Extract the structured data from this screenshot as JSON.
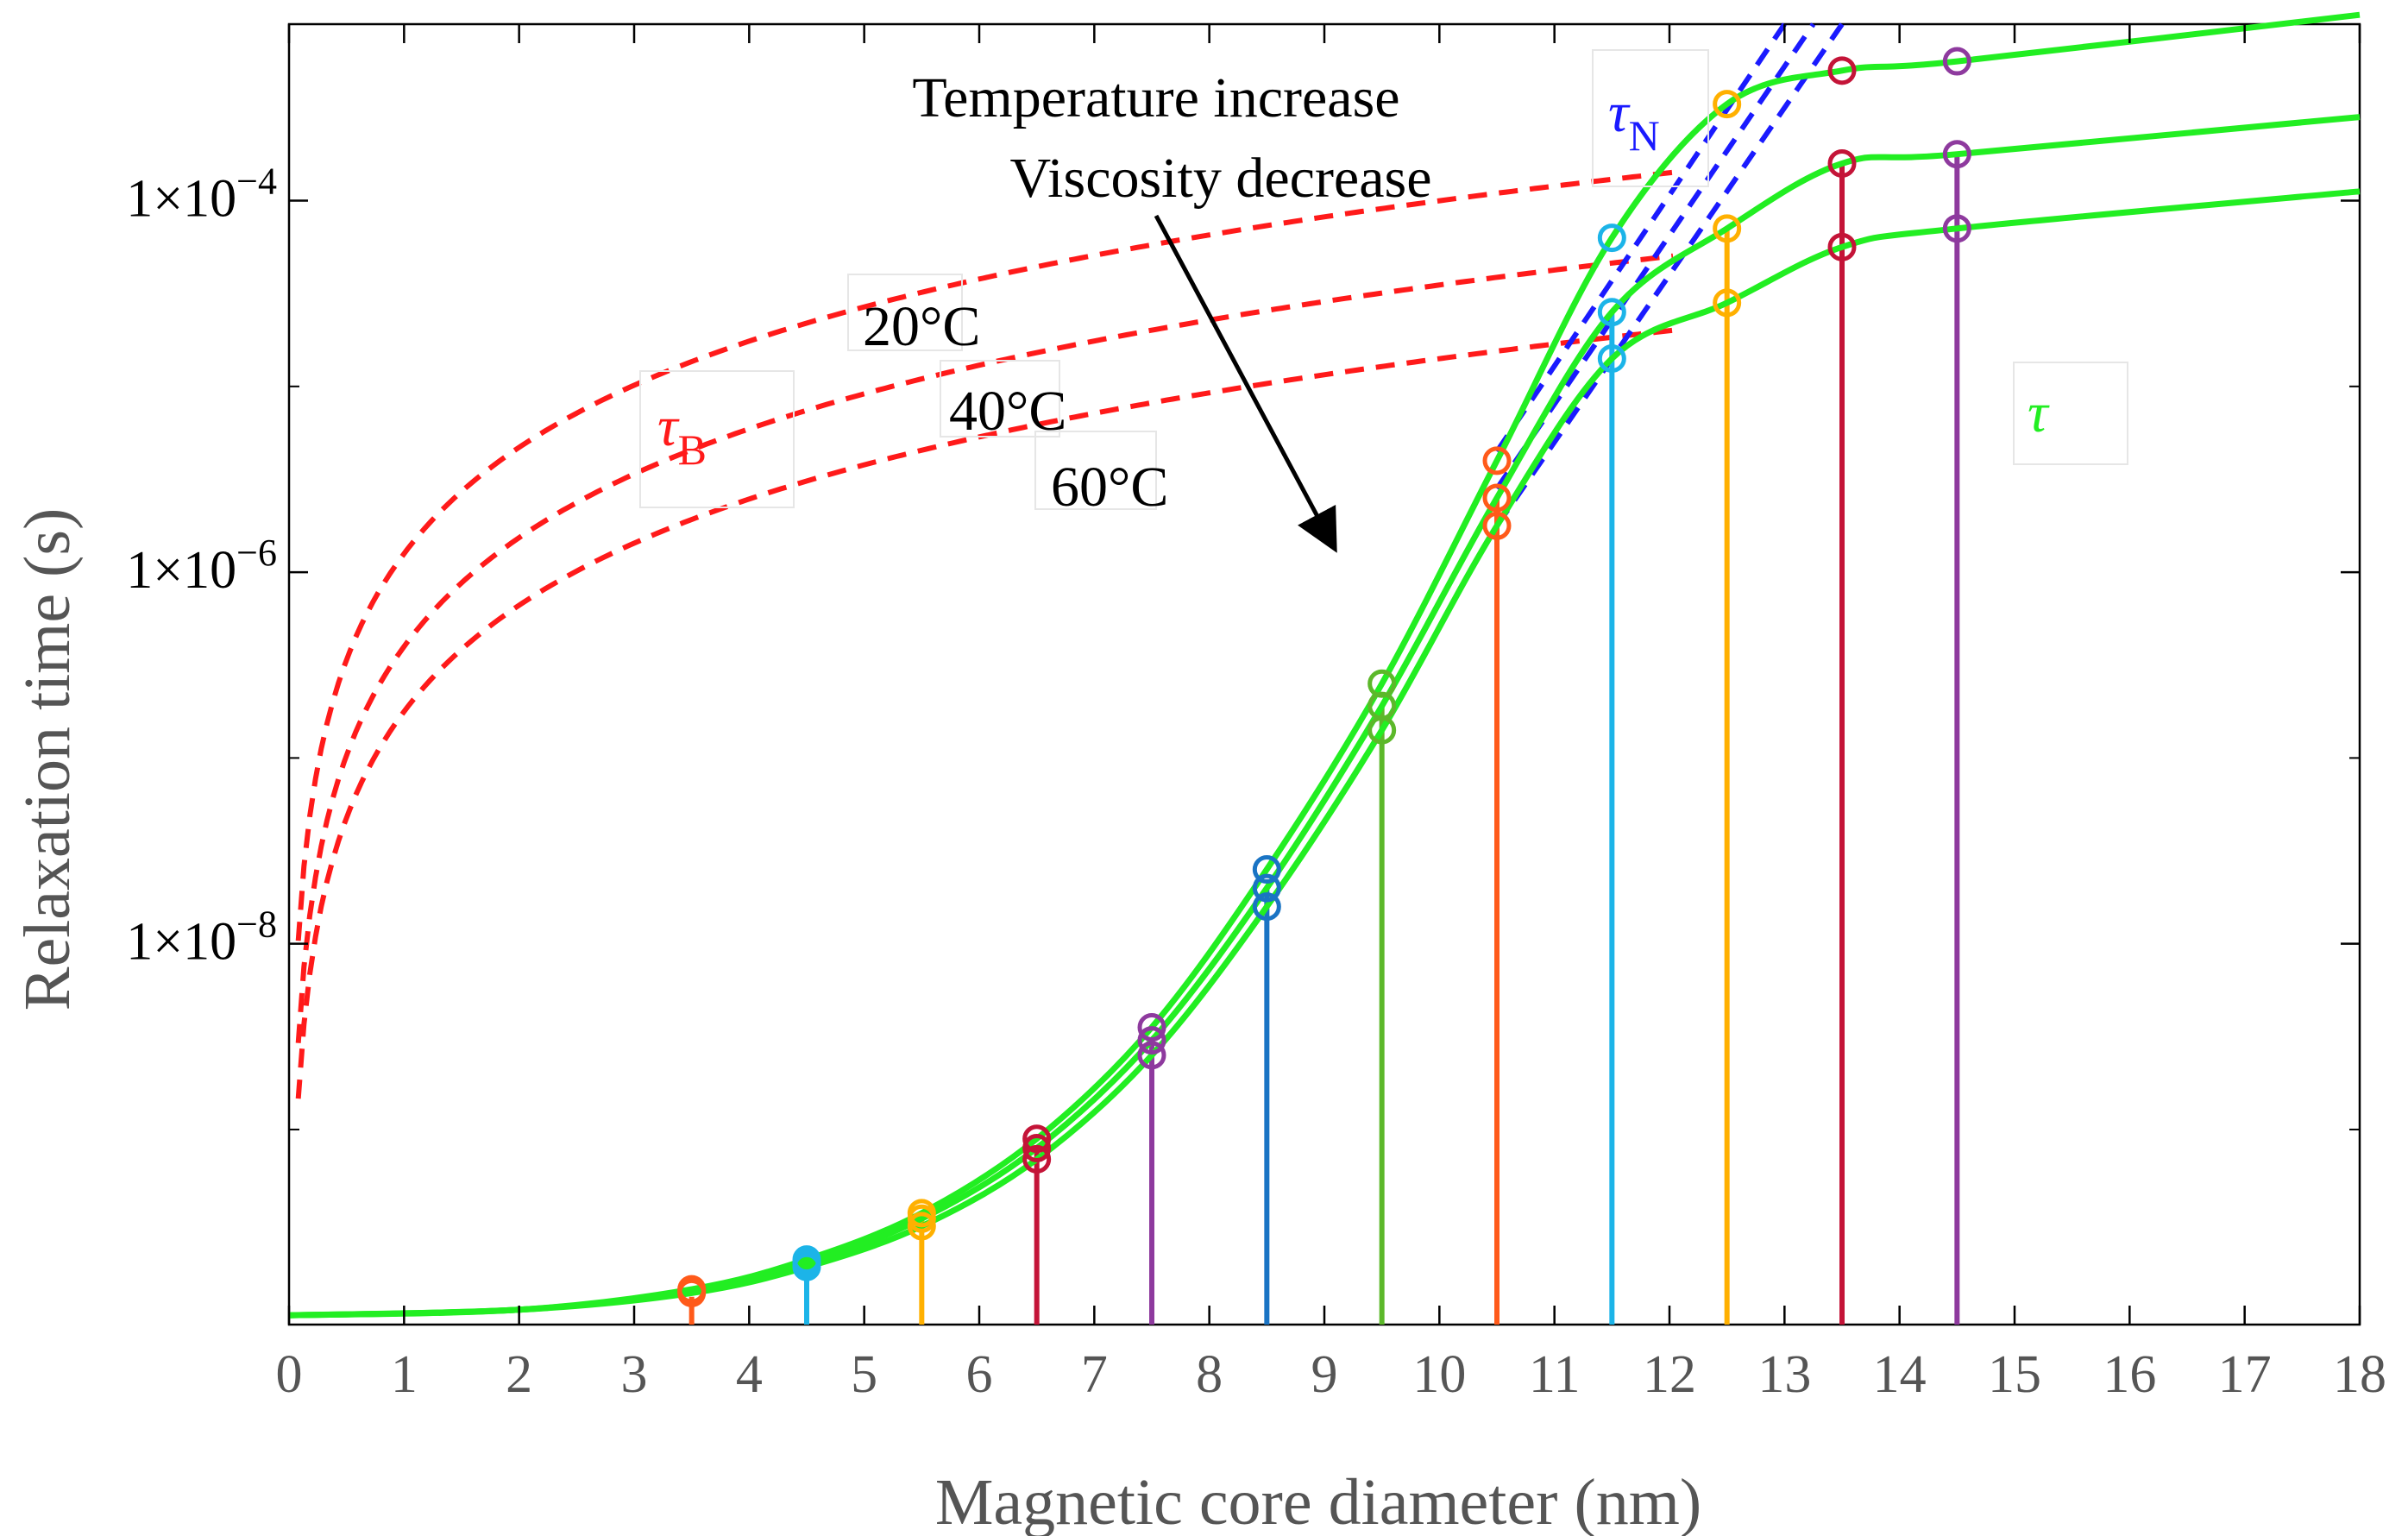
{
  "chart_data": {
    "type": "line",
    "title": "",
    "xlabel": "Magnetic core diameter (nm)",
    "ylabel": "Relaxation time (s)",
    "xlim": [
      0,
      18
    ],
    "ylim_log10": [
      -10.05,
      -3.05
    ],
    "xticks": [
      "0",
      "1",
      "2",
      "3",
      "4",
      "5",
      "6",
      "7",
      "8",
      "9",
      "10",
      "11",
      "12",
      "13",
      "14",
      "15",
      "16",
      "17",
      "18"
    ],
    "yticks": [
      {
        "mantissa": "1×10",
        "exponent": "−4",
        "log10": -4
      },
      {
        "mantissa": "1×10",
        "exponent": "−6",
        "log10": -6
      },
      {
        "mantissa": "1×10",
        "exponent": "−8",
        "log10": -8
      }
    ],
    "temperatures": [
      "20°C",
      "40°C",
      "60°C"
    ],
    "brownian_log10_tau_at_1nm": [
      -5.9,
      -6.4,
      -6.75
    ],
    "brownian_log10_tau_at_12nm": [
      -3.85,
      -4.3,
      -4.7
    ],
    "series": [
      {
        "name": "τ 20°C",
        "x": [
          0,
          2,
          3.5,
          4.5,
          5.5,
          6.5,
          7.5,
          8.5,
          9.5,
          10.5,
          11.5,
          12.5,
          13.5,
          14.5,
          18
        ],
        "log10_y": [
          -10.0,
          -9.97,
          -9.86,
          -9.7,
          -9.45,
          -9.05,
          -8.45,
          -7.6,
          -6.6,
          -5.4,
          -4.2,
          -3.48,
          -3.3,
          -3.25,
          -3.0
        ]
      },
      {
        "name": "τ 40°C",
        "x": [
          0,
          2,
          3.5,
          4.5,
          5.5,
          6.5,
          7.5,
          8.5,
          9.5,
          10.5,
          11.5,
          12.5,
          13.5,
          14.5,
          18
        ],
        "log10_y": [
          -10.0,
          -9.97,
          -9.87,
          -9.72,
          -9.48,
          -9.1,
          -8.52,
          -7.7,
          -6.72,
          -5.6,
          -4.6,
          -4.15,
          -3.8,
          -3.75,
          -3.55
        ]
      },
      {
        "name": "τ 60°C",
        "x": [
          0,
          2,
          3.5,
          4.5,
          5.5,
          6.5,
          7.5,
          8.5,
          9.5,
          10.5,
          11.5,
          12.5,
          13.5,
          14.5,
          18
        ],
        "log10_y": [
          -10.0,
          -9.97,
          -9.88,
          -9.74,
          -9.52,
          -9.16,
          -8.6,
          -7.8,
          -6.85,
          -5.75,
          -4.85,
          -4.55,
          -4.25,
          -4.15,
          -3.95
        ]
      }
    ],
    "stems": [
      {
        "x": 3.5,
        "log10_y": -9.9,
        "color": "#ff5a1a"
      },
      {
        "x": 4.5,
        "log10_y": -9.72,
        "color": "#1cb4e8"
      },
      {
        "x": 5.5,
        "log10_y": -9.48,
        "color": "#ffb000"
      },
      {
        "x": 6.5,
        "log10_y": -9.1,
        "color": "#c41438"
      },
      {
        "x": 7.5,
        "log10_y": -8.52,
        "color": "#8e3a9e"
      },
      {
        "x": 8.5,
        "log10_y": -7.7,
        "color": "#1a74c4"
      },
      {
        "x": 9.5,
        "log10_y": -6.72,
        "color": "#5cb82a"
      },
      {
        "x": 10.5,
        "log10_y": -5.6,
        "color": "#ff5a1a"
      },
      {
        "x": 11.5,
        "log10_y": -4.6,
        "color": "#1cb4e8"
      },
      {
        "x": 12.5,
        "log10_y": -4.15,
        "color": "#ffb000"
      },
      {
        "x": 13.5,
        "log10_y": -3.8,
        "color": "#c41438"
      },
      {
        "x": 14.5,
        "log10_y": -3.75,
        "color": "#8e3a9e"
      }
    ],
    "annotations": {
      "temp_line1": "Temperature increase",
      "temp_line2": "Viscosity decrease",
      "tau_b_symbol": "τ",
      "tau_b_sub": "B",
      "tau_n_symbol": "τ",
      "tau_n_sub": "N",
      "tau_symbol": "τ"
    },
    "colors": {
      "tau": "#22ee22",
      "brownian": "#ff1a1a",
      "neel": "#1a1aff",
      "axis": "#000000"
    }
  }
}
